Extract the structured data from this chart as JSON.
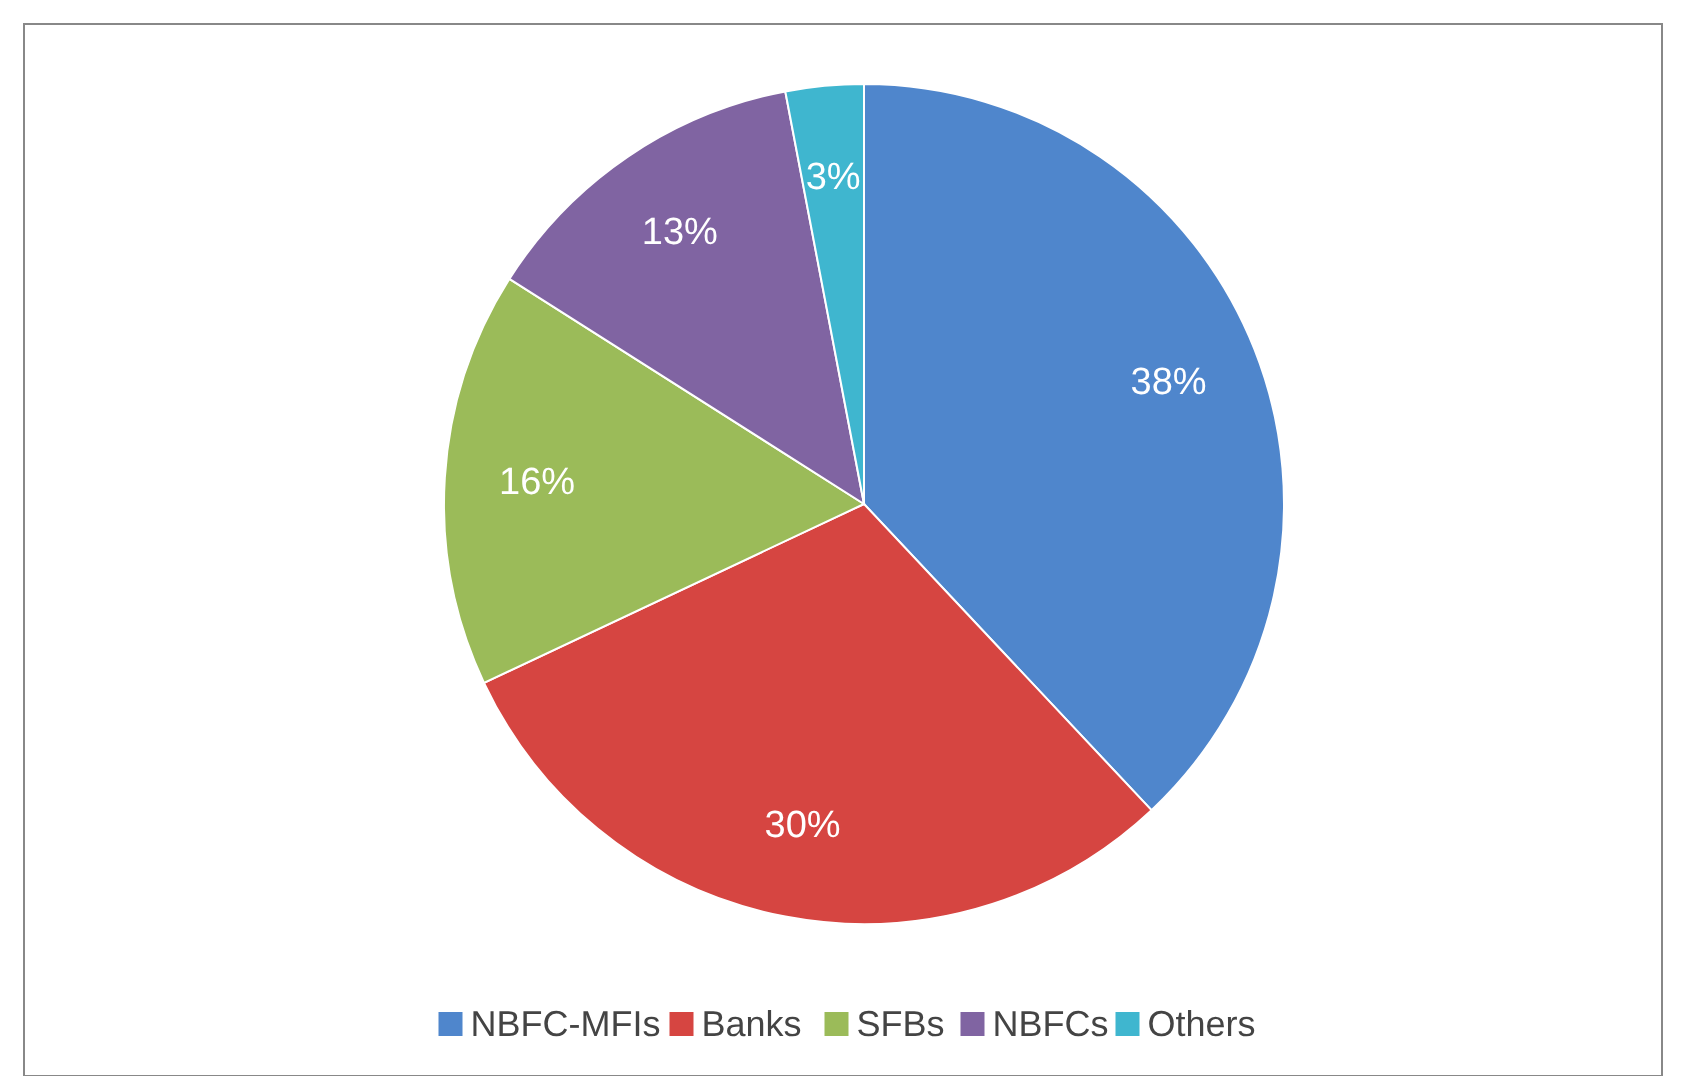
{
  "chart_data": {
    "type": "pie",
    "categories": [
      "NBFC-MFIs",
      "Banks",
      "SFBs",
      "NBFCs",
      "Others"
    ],
    "values": [
      38,
      30,
      16,
      13,
      3
    ],
    "colors": [
      "#4f86cc",
      "#d64541",
      "#9bbb59",
      "#8064a2",
      "#3fb6cf"
    ],
    "value_labels": [
      "38%",
      "30%",
      "16%",
      "13%",
      "3%"
    ],
    "legend": "bottom"
  }
}
